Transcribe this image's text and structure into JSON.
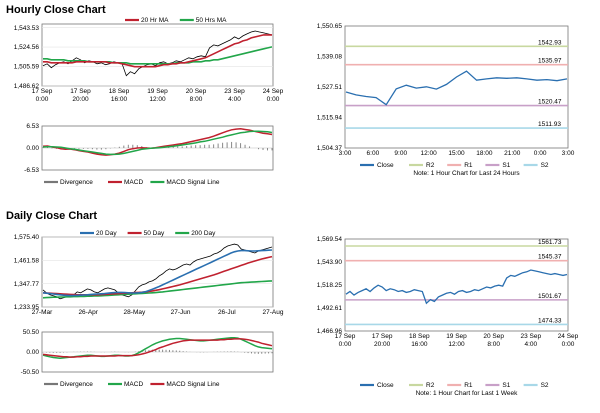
{
  "hourly": {
    "title": "Hourly Close Chart",
    "price": {
      "type": "line",
      "yticks": [
        "1,543.53",
        "1,524.56",
        "1,505.59",
        "1,486.62"
      ],
      "ytick_values": [
        1543.53,
        1524.56,
        1505.59,
        1486.62
      ],
      "ylim": [
        1486.62,
        1547
      ],
      "xticks": [
        "17 Sep\n0:00",
        "17 Sep\n20:00",
        "18 Sep\n16:00",
        "19 Sep\n12:00",
        "20 Sep\n8:00",
        "23 Sep\n4:00",
        "24 Sep\n0:00"
      ],
      "series": [
        {
          "name": "20 Hr MA",
          "color": "#c0212f"
        },
        {
          "name": "50 Hrs MA",
          "color": "#22a64a"
        },
        {
          "color": "#000000"
        }
      ],
      "close": [
        1506,
        1508,
        1504,
        1507,
        1509,
        1510,
        1508,
        1511,
        1514,
        1512,
        1509,
        1511,
        1510,
        1508,
        1509,
        1507,
        1508,
        1510,
        1509,
        1508,
        1496,
        1500,
        1498,
        1503,
        1505,
        1507,
        1508,
        1506,
        1509,
        1510,
        1508,
        1509,
        1511,
        1510,
        1512,
        1514,
        1513,
        1515,
        1516,
        1515,
        1524,
        1527,
        1526,
        1528,
        1530,
        1532,
        1535,
        1533,
        1536,
        1538,
        1540,
        1541,
        1540,
        1539,
        1538,
        1537
      ],
      "ma20": [
        1510,
        1510,
        1509,
        1509,
        1509,
        1509,
        1509,
        1509,
        1510,
        1510,
        1510,
        1510,
        1510,
        1510,
        1510,
        1510,
        1509,
        1509,
        1509,
        1508,
        1507,
        1506,
        1505,
        1505,
        1505,
        1505,
        1505,
        1505,
        1506,
        1507,
        1507,
        1508,
        1508,
        1509,
        1509,
        1510,
        1511,
        1512,
        1513,
        1514,
        1516,
        1518,
        1520,
        1522,
        1524,
        1526,
        1528,
        1529,
        1531,
        1532,
        1534,
        1535,
        1536,
        1537,
        1537,
        1537
      ],
      "ma50": [
        1513,
        1513,
        1512,
        1512,
        1512,
        1512,
        1511,
        1511,
        1511,
        1511,
        1511,
        1510,
        1510,
        1510,
        1510,
        1510,
        1510,
        1509,
        1509,
        1509,
        1509,
        1508,
        1508,
        1508,
        1508,
        1508,
        1508,
        1508,
        1508,
        1508,
        1508,
        1508,
        1509,
        1509,
        1509,
        1509,
        1510,
        1510,
        1510,
        1511,
        1511,
        1512,
        1512,
        1513,
        1514,
        1515,
        1516,
        1517,
        1518,
        1519,
        1520,
        1521,
        1522,
        1523,
        1524,
        1525
      ]
    },
    "macd": {
      "yticks": [
        "6.53",
        "0.00",
        "-6.53"
      ],
      "ylim": [
        -6.53,
        6.53
      ],
      "legend": [
        {
          "name": "Divergence",
          "color": "#777777"
        },
        {
          "name": "MACD",
          "color": "#c0212f"
        },
        {
          "name": "MACD Signal Line",
          "color": "#22a64a"
        }
      ],
      "macd": [
        0.5,
        0.6,
        0.3,
        0.1,
        -0.2,
        -0.4,
        -0.3,
        -0.5,
        -0.8,
        -1.0,
        -1.2,
        -1.5,
        -1.8,
        -2.0,
        -2.1,
        -2.0,
        -1.8,
        -1.5,
        -1.0,
        -0.5,
        -0.2,
        0.0,
        0.1,
        0.0,
        -0.1,
        0.1,
        0.3,
        0.5,
        0.7,
        0.9,
        1.1,
        1.3,
        1.6,
        1.9,
        2.2,
        2.5,
        2.8,
        3.1,
        3.5,
        4.0,
        4.5,
        5.0,
        5.4,
        5.6,
        5.7,
        5.5,
        5.3,
        5.0,
        4.7,
        4.4,
        4.2,
        4.0
      ],
      "signal": [
        0.3,
        0.4,
        0.4,
        0.3,
        0.2,
        0.0,
        -0.2,
        -0.4,
        -0.6,
        -0.8,
        -1.0,
        -1.2,
        -1.4,
        -1.6,
        -1.8,
        -1.9,
        -1.9,
        -1.8,
        -1.6,
        -1.3,
        -1.0,
        -0.7,
        -0.4,
        -0.2,
        -0.1,
        0.0,
        0.1,
        0.2,
        0.4,
        0.5,
        0.7,
        0.9,
        1.1,
        1.3,
        1.5,
        1.8,
        2.0,
        2.3,
        2.6,
        2.9,
        3.2,
        3.6,
        3.9,
        4.2,
        4.5,
        4.7,
        4.9,
        5.0,
        5.0,
        4.9,
        4.8,
        4.6
      ]
    },
    "right": {
      "type": "line",
      "yticks": [
        "1,550.65",
        "1,539.08",
        "1,527.51",
        "1,515.94",
        "1,504.37"
      ],
      "ytick_values": [
        1550.65,
        1539.08,
        1527.51,
        1515.94,
        1504.37
      ],
      "ylim": [
        1504.37,
        1550.65
      ],
      "xticks": [
        "3:00",
        "6:00",
        "9:00",
        "12:00",
        "15:00",
        "18:00",
        "21:00",
        "0:00",
        "3:00"
      ],
      "levels": [
        {
          "name": "R2",
          "value": 1542.93,
          "label": "1542.93",
          "color": "#c8d8a0"
        },
        {
          "name": "R1",
          "value": 1535.97,
          "label": "1535.97",
          "color": "#f0b0b0"
        },
        {
          "name": "S1",
          "value": 1520.47,
          "label": "1520.47",
          "color": "#c8a0c8"
        },
        {
          "name": "S2",
          "value": 1511.93,
          "label": "1511.93",
          "color": "#a8d8e8"
        }
      ],
      "close_color": "#2a6fb0",
      "close": [
        1525.6,
        1524.5,
        1523.9,
        1523.5,
        1520.8,
        1526.8,
        1528.2,
        1527.1,
        1527.6,
        1526.7,
        1528.5,
        1531.3,
        1533.5,
        1530.1,
        1530.6,
        1531.0,
        1530.8,
        1531.0,
        1530.6,
        1530.1,
        1530.3,
        1529.9,
        1530.6
      ],
      "legend": [
        {
          "name": "Close",
          "color": "#2a6fb0"
        },
        {
          "name": "R2",
          "color": "#c8d8a0"
        },
        {
          "name": "R1",
          "color": "#f0b0b0"
        },
        {
          "name": "S1",
          "color": "#c8a0c8"
        },
        {
          "name": "S2",
          "color": "#a8d8e8"
        }
      ],
      "note": "Note: 1 Hour Chart for Last 24 Hours"
    }
  },
  "daily": {
    "title": "Daily Close Chart",
    "price": {
      "type": "line",
      "yticks": [
        "1,575.40",
        "1,461.58",
        "1,347.77",
        "1,233.95"
      ],
      "ytick_values": [
        1575.4,
        1461.58,
        1347.77,
        1233.95
      ],
      "ylim": [
        1233.95,
        1575.4
      ],
      "xticks": [
        "27-Mar",
        "26-Apr",
        "28-May",
        "27-Jun",
        "26-Jul",
        "27-Aug"
      ],
      "series": [
        {
          "name": "20 Day",
          "color": "#2a6fb0"
        },
        {
          "name": "50 Day",
          "color": "#c0212f"
        },
        {
          "name": "200 Day",
          "color": "#22a64a"
        },
        {
          "color": "#000000"
        }
      ],
      "close": [
        1315,
        1300,
        1290,
        1285,
        1280,
        1270,
        1275,
        1280,
        1285,
        1290,
        1305,
        1300,
        1310,
        1320,
        1315,
        1305,
        1300,
        1310,
        1320,
        1325,
        1320,
        1315,
        1300,
        1290,
        1285,
        1280,
        1290,
        1310,
        1330,
        1340,
        1345,
        1355,
        1360,
        1370,
        1385,
        1395,
        1410,
        1420,
        1415,
        1420,
        1430,
        1440,
        1445,
        1440,
        1455,
        1465,
        1470,
        1475,
        1480,
        1485,
        1495,
        1500,
        1510,
        1525,
        1535,
        1540,
        1545,
        1540,
        1520,
        1515,
        1510,
        1505,
        1500,
        1510,
        1515,
        1520,
        1525,
        1530
      ],
      "ma20": [
        1300,
        1298,
        1296,
        1294,
        1292,
        1290,
        1288,
        1287,
        1286,
        1286,
        1287,
        1288,
        1289,
        1290,
        1292,
        1293,
        1294,
        1295,
        1296,
        1298,
        1300,
        1301,
        1302,
        1302,
        1301,
        1300,
        1299,
        1299,
        1300,
        1302,
        1306,
        1312,
        1318,
        1325,
        1332,
        1340,
        1348,
        1356,
        1364,
        1372,
        1380,
        1388,
        1396,
        1404,
        1412,
        1420,
        1428,
        1436,
        1444,
        1452,
        1460,
        1468,
        1476,
        1484,
        1492,
        1500,
        1506,
        1510,
        1512,
        1512,
        1511,
        1510,
        1510,
        1511,
        1512,
        1513,
        1514,
        1515
      ],
      "ma50": [
        1300,
        1299,
        1298,
        1297,
        1296,
        1295,
        1294,
        1293,
        1292,
        1291,
        1290,
        1290,
        1290,
        1290,
        1290,
        1290,
        1290,
        1291,
        1292,
        1293,
        1294,
        1295,
        1296,
        1297,
        1298,
        1299,
        1300,
        1301,
        1302,
        1303,
        1305,
        1307,
        1310,
        1313,
        1316,
        1320,
        1324,
        1328,
        1332,
        1336,
        1340,
        1345,
        1350,
        1355,
        1360,
        1365,
        1370,
        1375,
        1380,
        1385,
        1390,
        1396,
        1402,
        1408,
        1414,
        1420,
        1426,
        1432,
        1438,
        1444,
        1450,
        1455,
        1460,
        1465,
        1470,
        1474,
        1478,
        1482
      ],
      "ma200": [
        1275,
        1276,
        1277,
        1278,
        1278,
        1279,
        1279,
        1280,
        1280,
        1281,
        1281,
        1282,
        1282,
        1283,
        1283,
        1284,
        1284,
        1285,
        1286,
        1287,
        1288,
        1289,
        1290,
        1291,
        1292,
        1293,
        1294,
        1295,
        1296,
        1297,
        1298,
        1299,
        1300,
        1301,
        1303,
        1305,
        1307,
        1309,
        1311,
        1313,
        1315,
        1317,
        1319,
        1321,
        1323,
        1325,
        1327,
        1329,
        1331,
        1333,
        1335,
        1337,
        1339,
        1341,
        1343,
        1345,
        1347,
        1349,
        1351,
        1352,
        1353,
        1354,
        1355,
        1356,
        1357,
        1358,
        1359,
        1360
      ]
    },
    "macd": {
      "yticks": [
        "50.50",
        "0.00",
        "-50.50"
      ],
      "ylim": [
        -50.5,
        50.5
      ],
      "legend": [
        {
          "name": "Divergence",
          "color": "#777777"
        },
        {
          "name": "MACD",
          "color": "#22a64a"
        },
        {
          "name": "MACD Signal Line",
          "color": "#c0212f"
        }
      ],
      "macd": [
        -8,
        -10,
        -12,
        -14,
        -15,
        -16,
        -15,
        -14,
        -13,
        -12,
        -11,
        -10,
        -9,
        -8,
        -8,
        -9,
        -10,
        -11,
        -11,
        -10,
        -9,
        -8,
        -8,
        -9,
        -10,
        -10,
        -9,
        -6,
        -2,
        3,
        8,
        13,
        18,
        22,
        25,
        28,
        30,
        32,
        33,
        34,
        34,
        33,
        32,
        31,
        30,
        29,
        28,
        28,
        29,
        30,
        31,
        32,
        33,
        34,
        35,
        36,
        36,
        35,
        32,
        28,
        24,
        20,
        16,
        13,
        11,
        10,
        9,
        8
      ],
      "signal": [
        -6,
        -7,
        -8,
        -9,
        -10,
        -11,
        -12,
        -12,
        -13,
        -13,
        -12,
        -12,
        -11,
        -11,
        -10,
        -10,
        -10,
        -10,
        -10,
        -10,
        -10,
        -10,
        -9,
        -9,
        -9,
        -9,
        -9,
        -8,
        -7,
        -5,
        -3,
        0,
        3,
        6,
        10,
        13,
        16,
        19,
        22,
        24,
        26,
        28,
        29,
        30,
        30,
        30,
        30,
        30,
        30,
        30,
        30,
        30,
        31,
        31,
        32,
        32,
        33,
        33,
        33,
        32,
        31,
        29,
        27,
        25,
        22,
        20,
        18,
        16
      ]
    },
    "right": {
      "type": "line",
      "yticks": [
        "1,569.54",
        "1,543.90",
        "1,518.25",
        "1,492.61",
        "1,466.96"
      ],
      "ytick_values": [
        1569.54,
        1543.9,
        1518.25,
        1492.61,
        1466.96
      ],
      "ylim": [
        1466.96,
        1569.54
      ],
      "xticks": [
        "17 Sep\n0:00",
        "17 Sep\n20:00",
        "18 Sep\n16:00",
        "19 Sep\n12:00",
        "20 Sep\n8:00",
        "23 Sep\n4:00",
        "24 Sep\n0:00"
      ],
      "levels": [
        {
          "name": "R2",
          "value": 1561.73,
          "label": "1561.73",
          "color": "#c8d8a0"
        },
        {
          "name": "R1",
          "value": 1545.37,
          "label": "1545.37",
          "color": "#f0b0b0"
        },
        {
          "name": "S1",
          "value": 1501.67,
          "label": "1501.67",
          "color": "#c8a0c8"
        },
        {
          "name": "S2",
          "value": 1474.33,
          "label": "1474.33",
          "color": "#a8d8e8"
        }
      ],
      "close_color": "#2a6fb0",
      "close": [
        1508,
        1511,
        1507,
        1510,
        1512,
        1514,
        1511,
        1515,
        1518,
        1516,
        1512,
        1514,
        1513,
        1511,
        1512,
        1510,
        1511,
        1513,
        1512,
        1511,
        1498,
        1502,
        1500,
        1505,
        1507,
        1509,
        1510,
        1508,
        1511,
        1512,
        1510,
        1511,
        1513,
        1512,
        1514,
        1516,
        1515,
        1517,
        1518,
        1517,
        1526,
        1529,
        1528,
        1530,
        1532,
        1533,
        1535,
        1534,
        1533,
        1532,
        1531,
        1530,
        1531,
        1530,
        1529,
        1530
      ],
      "legend": [
        {
          "name": "Close",
          "color": "#2a6fb0"
        },
        {
          "name": "R2",
          "color": "#c8d8a0"
        },
        {
          "name": "R1",
          "color": "#f0b0b0"
        },
        {
          "name": "S1",
          "color": "#c8a0c8"
        },
        {
          "name": "S2",
          "color": "#a8d8e8"
        }
      ],
      "note": "Note: 1 Hour Chart for Last 1 Week"
    }
  },
  "chart_data": [
    {
      "type": "line",
      "title": "Hourly Close Chart",
      "ylim": [
        1486.62,
        1547
      ],
      "series": [
        "20 Hr MA",
        "50 Hrs MA"
      ]
    },
    {
      "type": "line",
      "ylim": [
        -6.53,
        6.53
      ],
      "series": [
        "Divergence",
        "MACD",
        "MACD Signal Line"
      ]
    },
    {
      "type": "line",
      "ylim": [
        1504.37,
        1550.65
      ],
      "series": [
        "Close",
        "R2",
        "R1",
        "S1",
        "S2"
      ],
      "levels": {
        "R2": 1542.93,
        "R1": 1535.97,
        "S1": 1520.47,
        "S2": 1511.93
      }
    },
    {
      "type": "line",
      "title": "Daily Close Chart",
      "ylim": [
        1233.95,
        1575.4
      ],
      "series": [
        "20 Day",
        "50 Day",
        "200 Day"
      ]
    },
    {
      "type": "line",
      "ylim": [
        -50.5,
        50.5
      ],
      "series": [
        "Divergence",
        "MACD",
        "MACD Signal Line"
      ]
    },
    {
      "type": "line",
      "ylim": [
        1466.96,
        1569.54
      ],
      "series": [
        "Close",
        "R2",
        "R1",
        "S1",
        "S2"
      ],
      "levels": {
        "R2": 1561.73,
        "R1": 1545.37,
        "S1": 1501.67,
        "S2": 1474.33
      }
    }
  ]
}
